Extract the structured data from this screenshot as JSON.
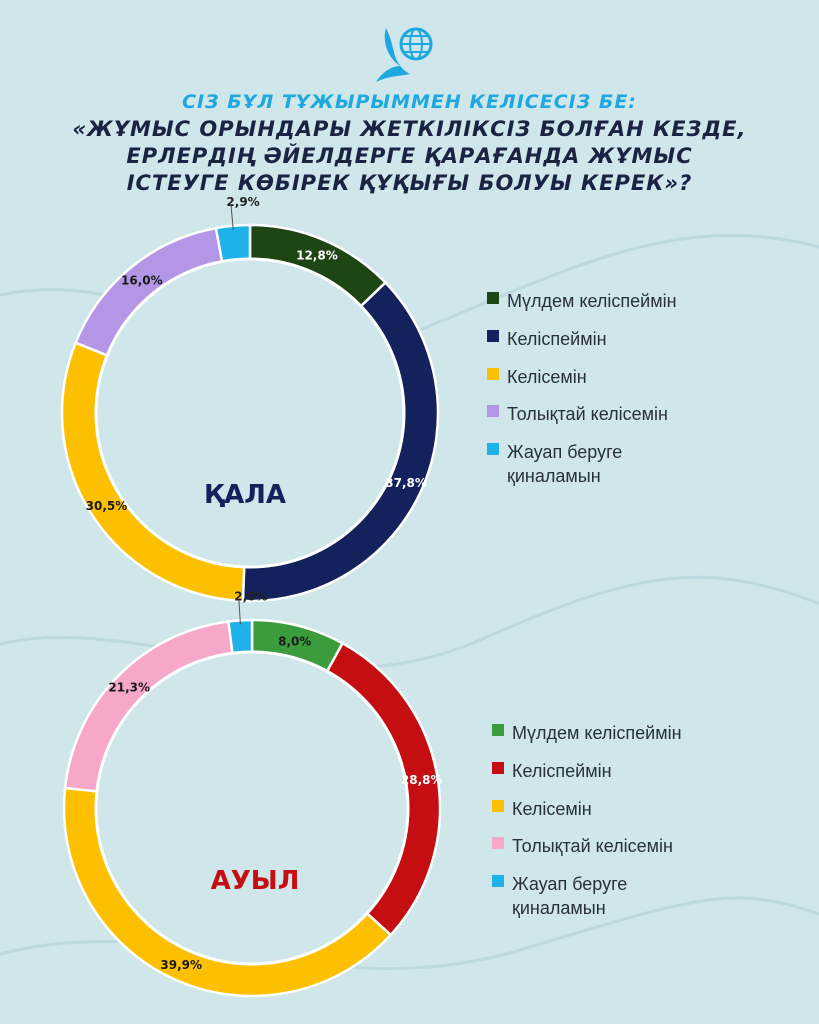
{
  "header": {
    "logo_icon": "globe-bird-icon",
    "question_line1": "СІЗ БҰЛ ТҰЖЫРЫММЕН КЕЛІСЕСІЗ БЕ:",
    "question_line2": "«ЖҰМЫС ОРЫНДАРЫ ЖЕТКІЛІКСІЗ БОЛҒАН КЕЗДЕ,",
    "question_line3": "ЕРЛЕРДІҢ ӘЙЕЛДЕРГЕ ҚАРАҒАНДА ЖҰМЫС",
    "question_line4": "ІСТЕУГЕ КӨБІРЕК ҚҰҚЫҒЫ БОЛУЫ КЕРЕК»?"
  },
  "chart_data": [
    {
      "type": "pie",
      "center_label": "ҚАЛА",
      "center_icon": "city-icon",
      "labels": [
        "Мүлдем келіспеймін",
        "Келіспеймін",
        "Келісемін",
        "Толықтай келісемін",
        "Жауап беруге қиналамын"
      ],
      "values": [
        12.8,
        37.8,
        30.5,
        16.0,
        2.9
      ],
      "value_labels": [
        "12,8%",
        "37,8%",
        "30,5%",
        "16,0%",
        "2,9%"
      ],
      "colors": [
        "#1d4614",
        "#13215c",
        "#fdc000",
        "#b496e6",
        "#1fb1ea"
      ],
      "legend": [
        "Мүлдем келіспеймін",
        "Келіспеймін",
        "Келісемін",
        "Толықтай келісемін",
        "Жауап беруге қиналамын"
      ]
    },
    {
      "type": "pie",
      "center_label": "АУЫЛ",
      "center_icon": "farm-house-icon",
      "labels": [
        "Мүлдем келіспеймін",
        "Келіспеймін",
        "Келісемін",
        "Толықтай келісемін",
        "Жауап беруге қиналамын"
      ],
      "values": [
        8.0,
        28.8,
        39.9,
        21.3,
        2.0
      ],
      "value_labels": [
        "8,0%",
        "28,8%",
        "39,9%",
        "21,3%",
        "2,0%"
      ],
      "colors": [
        "#3a9c3c",
        "#c40e12",
        "#fdc000",
        "#f7a7c9",
        "#1fb1ea"
      ],
      "legend": [
        "Мүлдем келіспеймін",
        "Келіспеймін",
        "Келісемін",
        "Толықтай келісемін",
        "Жауап беруге қиналамын"
      ]
    }
  ],
  "colors": {
    "background": "#cfe6ea",
    "title_accent": "#1fa8e0",
    "title_dark": "#1b2242",
    "city_label": "#13215c",
    "village_label": "#c40e12"
  }
}
